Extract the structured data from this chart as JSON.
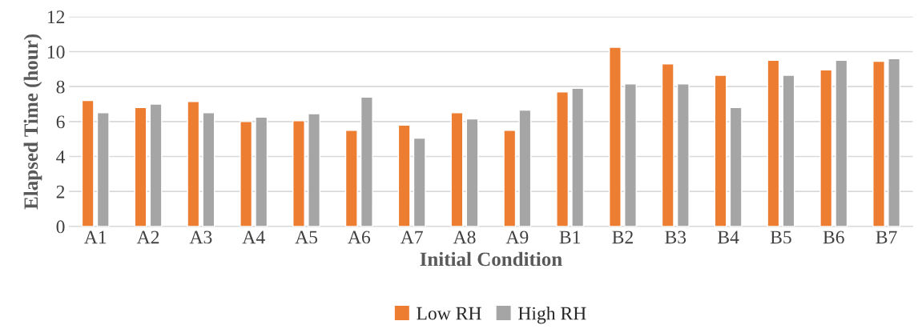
{
  "chart_data": {
    "type": "bar",
    "xlabel": "Initial Condition",
    "ylabel": "Elapsed Time (hour)",
    "categories": [
      "A1",
      "A2",
      "A3",
      "A4",
      "A5",
      "A6",
      "A7",
      "A8",
      "A9",
      "B1",
      "B2",
      "B3",
      "B4",
      "B5",
      "B6",
      "B7"
    ],
    "series": [
      {
        "name": "Low RH",
        "color": "#ed7d31",
        "values": [
          7.2,
          6.8,
          7.15,
          6.0,
          6.05,
          5.5,
          5.8,
          6.5,
          5.5,
          7.7,
          10.25,
          9.3,
          8.65,
          9.5,
          8.95,
          9.45
        ]
      },
      {
        "name": "High RH",
        "color": "#a5a5a5",
        "values": [
          6.5,
          7.0,
          6.5,
          6.25,
          6.45,
          7.4,
          5.05,
          6.15,
          6.65,
          7.9,
          8.15,
          8.15,
          6.8,
          8.65,
          9.5,
          9.6
        ]
      }
    ],
    "ylim": [
      0,
      12
    ],
    "yticks": [
      0,
      2,
      4,
      6,
      8,
      10,
      12
    ],
    "grid": "y",
    "legend": "bottom"
  }
}
